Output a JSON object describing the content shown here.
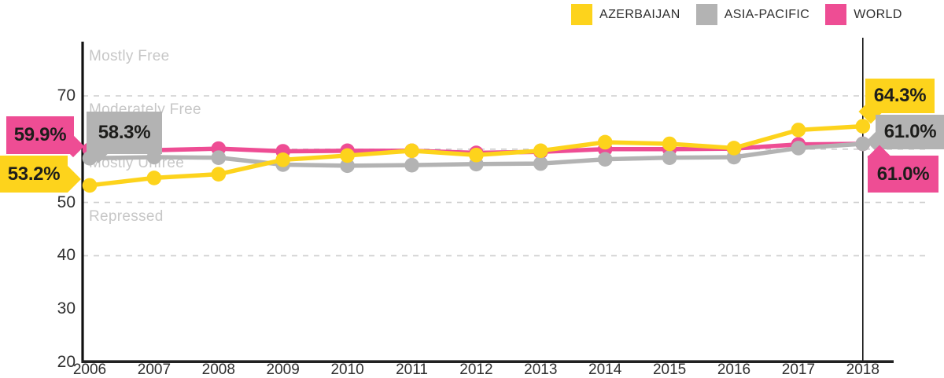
{
  "legend": {
    "items": [
      {
        "label": "AZERBAIJAN",
        "color": "#FDD31C"
      },
      {
        "label": "ASIA-PACIFIC",
        "color": "#B3B3B3"
      },
      {
        "label": "WORLD",
        "color": "#EE4D94"
      }
    ]
  },
  "chart_data": {
    "type": "line",
    "x": [
      2006,
      2007,
      2008,
      2009,
      2010,
      2011,
      2012,
      2013,
      2014,
      2015,
      2016,
      2017,
      2018
    ],
    "series": [
      {
        "name": "WORLD",
        "color": "#EE4D94",
        "values": [
          59.9,
          59.8,
          60.1,
          59.6,
          59.7,
          59.7,
          59.3,
          59.5,
          60.0,
          60.0,
          60.1,
          60.9,
          61.0
        ]
      },
      {
        "name": "ASIA-PACIFIC",
        "color": "#B3B3B3",
        "values": [
          58.3,
          58.5,
          58.4,
          57.1,
          56.9,
          57.0,
          57.2,
          57.3,
          58.1,
          58.4,
          58.5,
          60.2,
          61.0
        ]
      },
      {
        "name": "AZERBAIJAN",
        "color": "#FDD31C",
        "values": [
          53.2,
          54.6,
          55.3,
          58.0,
          58.8,
          59.7,
          58.9,
          59.7,
          61.3,
          61.0,
          60.2,
          63.6,
          64.3
        ]
      }
    ],
    "ylim": [
      20,
      70
    ],
    "yticks": [
      20,
      30,
      40,
      50,
      60,
      70
    ],
    "gridline_values": [
      40,
      50,
      60,
      70
    ],
    "grid_style": "dashed",
    "legend_position": "top-right",
    "zones": [
      {
        "label": "Mostly Free",
        "below_value": 80
      },
      {
        "label": "Moderately Free",
        "below_value": 70
      },
      {
        "label": "Mostly Unfree",
        "below_value": 60
      },
      {
        "label": "Repressed",
        "below_value": 50
      }
    ],
    "end_marker_year": 2018
  },
  "callouts": {
    "left": [
      {
        "series": "WORLD",
        "label": "59.9%",
        "color": "#EE4D94"
      },
      {
        "series": "ASIA-PACIFIC",
        "label": "58.3%",
        "color": "#B3B3B3"
      },
      {
        "series": "AZERBAIJAN",
        "label": "53.2%",
        "color": "#FDD31C"
      }
    ],
    "right": [
      {
        "series": "AZERBAIJAN",
        "label": "64.3%",
        "color": "#FDD31C"
      },
      {
        "series": "ASIA-PACIFIC",
        "label": "61.0%",
        "color": "#B3B3B3"
      },
      {
        "series": "WORLD",
        "label": "61.0%",
        "color": "#EE4D94"
      }
    ]
  }
}
